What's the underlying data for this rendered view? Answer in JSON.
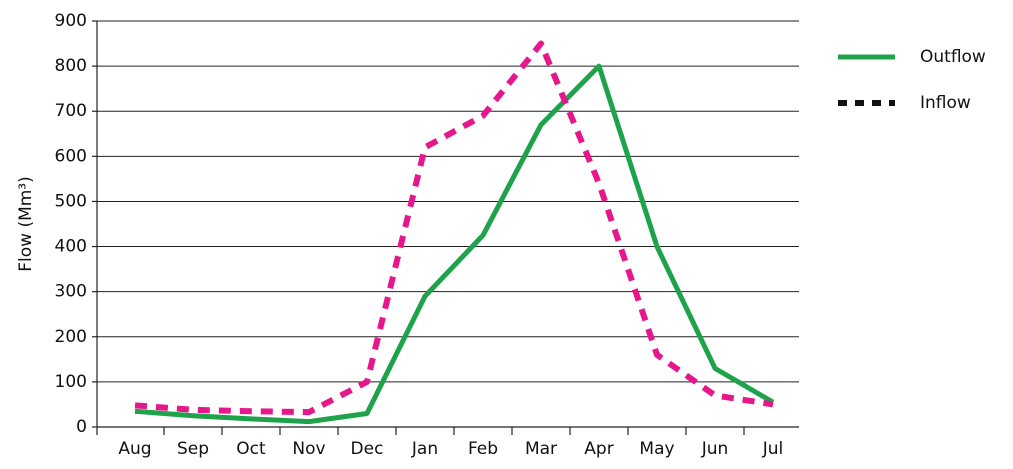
{
  "chart_data": {
    "type": "line",
    "y_label": "Flow (Mm³)",
    "categories": [
      "Aug",
      "Sep",
      "Oct",
      "Nov",
      "Dec",
      "Jan",
      "Feb",
      "Mar",
      "Apr",
      "May",
      "Jun",
      "Jul"
    ],
    "series": [
      {
        "name": "Outflow",
        "color": "#1fa34a",
        "dash": false,
        "values": [
          35,
          25,
          18,
          12,
          30,
          290,
          425,
          670,
          800,
          400,
          130,
          55
        ]
      },
      {
        "name": "Inflow",
        "color": "#e6178c",
        "dash": true,
        "values": [
          48,
          38,
          35,
          33,
          100,
          620,
          690,
          850,
          540,
          160,
          70,
          50
        ]
      }
    ],
    "ylim": [
      0,
      900
    ],
    "yticks": [
      0,
      100,
      200,
      300,
      400,
      500,
      600,
      700,
      800,
      900
    ],
    "grid": true,
    "legend": "right"
  }
}
